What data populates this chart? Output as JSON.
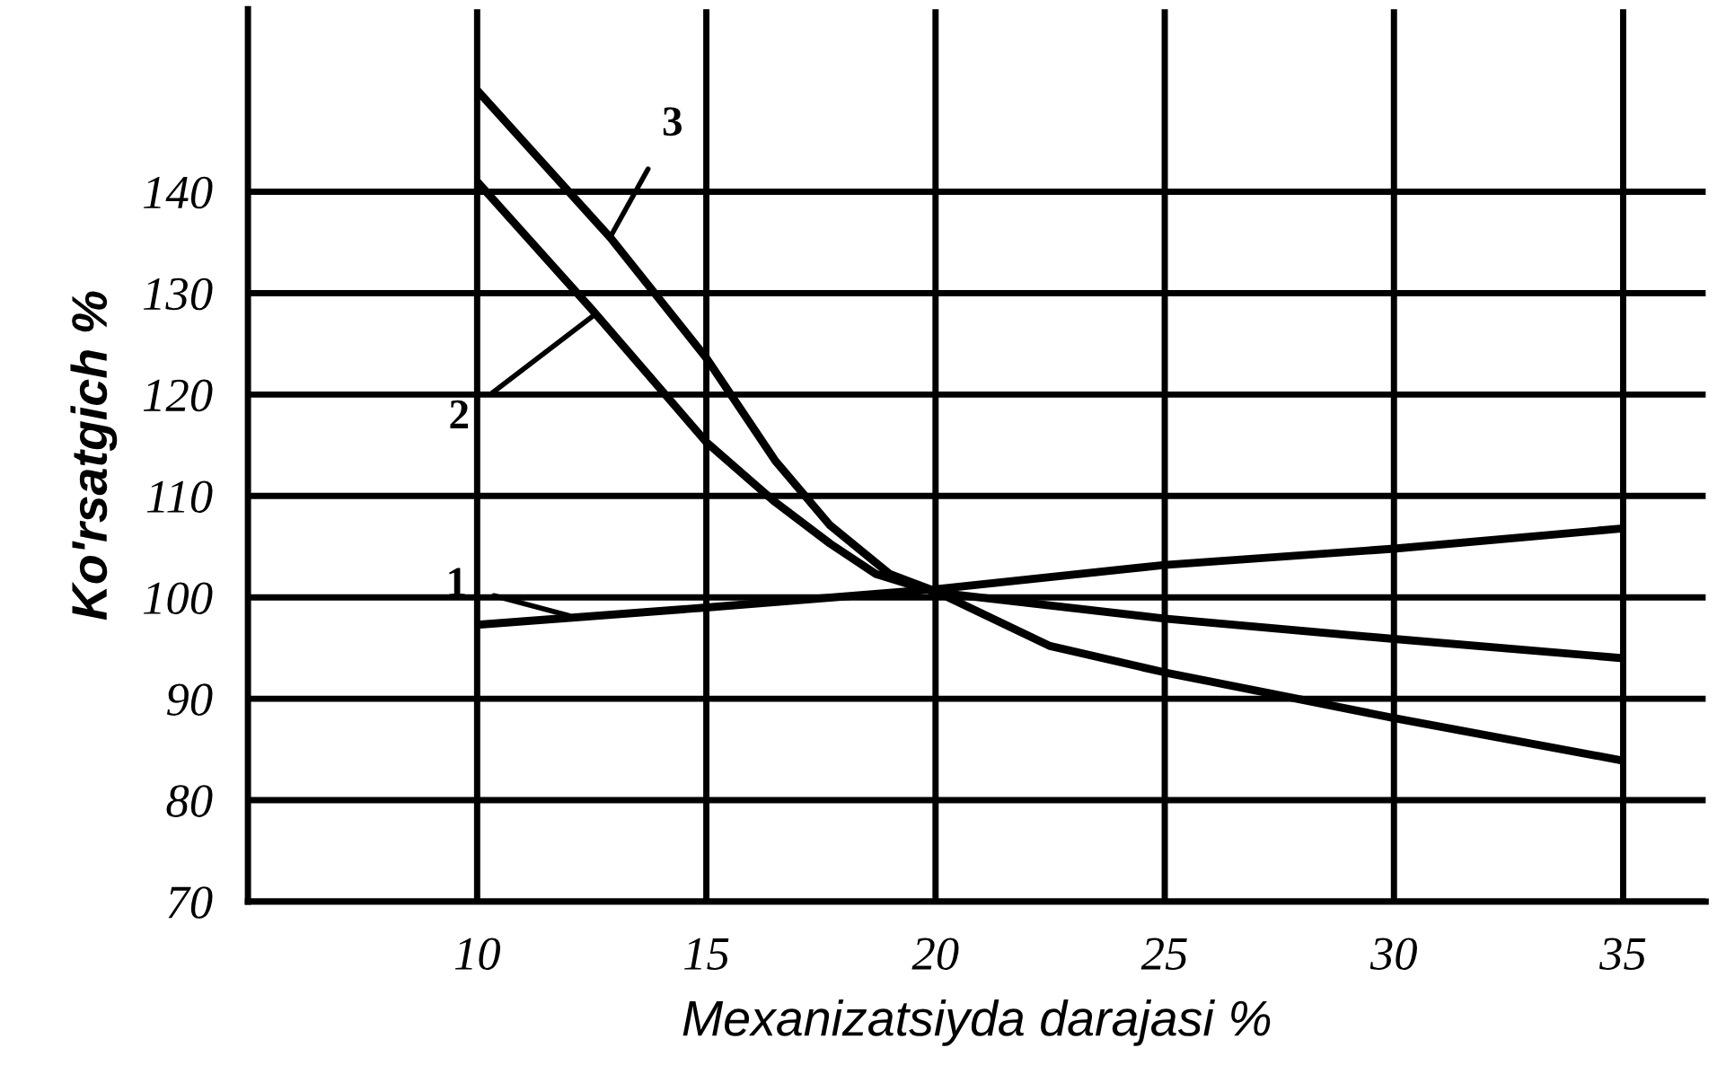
{
  "chart_data": {
    "type": "line",
    "xlabel": "Mexanizatsiyda darajasi %",
    "ylabel": "Ko'rsatgich %",
    "series": [
      {
        "color": "#000000",
        "x": [
          10,
          15,
          20,
          25,
          30,
          35
        ],
        "values": [
          97.3,
          99,
          100.8,
          103.2,
          104.8,
          106.8
        ]
      },
      {
        "color": "#000000",
        "x": [
          10,
          12.5,
          15,
          16.5,
          17.7,
          18.7,
          20,
          25,
          30,
          35
        ],
        "values": [
          141,
          128.4,
          115.3,
          109.4,
          105.3,
          102.3,
          100.5,
          97.9,
          95.9,
          94
        ]
      },
      {
        "color": "#000000",
        "x": [
          10,
          12.9,
          15,
          16.5,
          17.7,
          19,
          20,
          22.5,
          25,
          30,
          35
        ],
        "values": [
          150,
          135.5,
          123.6,
          113.5,
          107.1,
          102.3,
          100.6,
          95.2,
          92.6,
          88.1,
          83.9
        ]
      }
    ],
    "annotations": [
      {
        "text": "1",
        "x": 12,
        "y": 98.2
      },
      {
        "text": "2",
        "x": 12.6,
        "y": 128
      },
      {
        "text": "3",
        "x": 12.9,
        "y": 135.5
      }
    ],
    "xlim": [
      5,
      36.8
    ],
    "xticks": [
      10,
      15,
      20,
      25,
      30,
      35
    ],
    "ylim": [
      70,
      158
    ],
    "yticks": [
      70,
      80,
      90,
      100,
      110,
      120,
      130,
      140
    ],
    "grid": true,
    "marker": "none",
    "line_style": "solid"
  }
}
